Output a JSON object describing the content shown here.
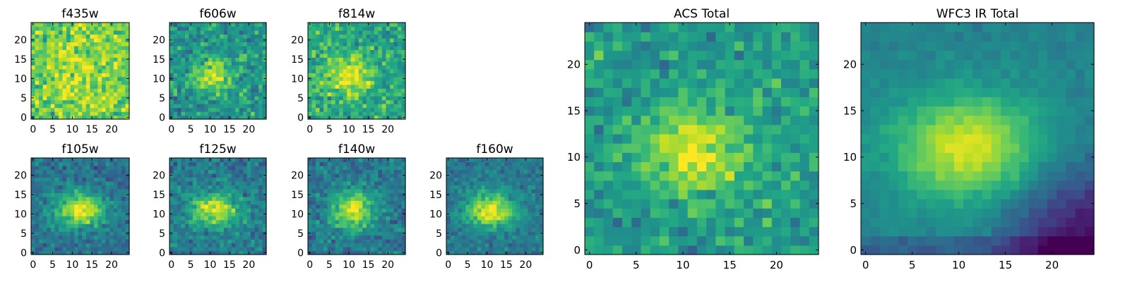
{
  "chart_data": [
    {
      "type": "heatmap",
      "title": "f435w",
      "xticks": [
        "0",
        "5",
        "10",
        "15",
        "20"
      ],
      "yticks": [
        "0",
        "5",
        "10",
        "15",
        "20"
      ],
      "xlim": [
        -0.5,
        24.5
      ],
      "ylim": [
        -0.5,
        24.5
      ],
      "grid_size": 25,
      "colormap": "viridis",
      "center": [
        12,
        12
      ],
      "sigma": [
        9,
        9
      ],
      "peak": 0.15,
      "background": 0.72,
      "noise": 0.22,
      "seed": 11
    },
    {
      "type": "heatmap",
      "title": "f606w",
      "xticks": [
        "0",
        "5",
        "10",
        "15",
        "20"
      ],
      "yticks": [
        "0",
        "5",
        "10",
        "15",
        "20"
      ],
      "xlim": [
        -0.5,
        24.5
      ],
      "ylim": [
        -0.5,
        24.5
      ],
      "grid_size": 25,
      "colormap": "viridis",
      "center": [
        11,
        11
      ],
      "sigma": [
        3.5,
        3
      ],
      "peak": 0.42,
      "background": 0.52,
      "noise": 0.2,
      "seed": 23
    },
    {
      "type": "heatmap",
      "title": "f814w",
      "xticks": [
        "0",
        "5",
        "10",
        "15",
        "20"
      ],
      "yticks": [
        "0",
        "5",
        "10",
        "15",
        "20"
      ],
      "xlim": [
        -0.5,
        24.5
      ],
      "ylim": [
        -0.5,
        24.5
      ],
      "grid_size": 25,
      "colormap": "viridis",
      "center": [
        10,
        11
      ],
      "sigma": [
        4.5,
        3.5
      ],
      "peak": 0.35,
      "background": 0.6,
      "noise": 0.2,
      "seed": 37
    },
    {
      "type": "heatmap",
      "title": "f105w",
      "xticks": [
        "0",
        "5",
        "10",
        "15",
        "20"
      ],
      "yticks": [
        "0",
        "5",
        "10",
        "15",
        "20"
      ],
      "xlim": [
        -0.5,
        24.5
      ],
      "ylim": [
        -0.5,
        24.5
      ],
      "grid_size": 25,
      "colormap": "viridis",
      "center": [
        12,
        11
      ],
      "sigma": [
        4.5,
        3
      ],
      "peak": 0.6,
      "background": 0.38,
      "noise": 0.14,
      "seed": 41
    },
    {
      "type": "heatmap",
      "title": "f125w",
      "xticks": [
        "0",
        "5",
        "10",
        "15",
        "20"
      ],
      "yticks": [
        "0",
        "5",
        "10",
        "15",
        "20"
      ],
      "xlim": [
        -0.5,
        24.5
      ],
      "ylim": [
        -0.5,
        24.5
      ],
      "grid_size": 25,
      "colormap": "viridis",
      "center": [
        11,
        11
      ],
      "sigma": [
        4.5,
        3
      ],
      "peak": 0.5,
      "background": 0.42,
      "noise": 0.16,
      "seed": 53
    },
    {
      "type": "heatmap",
      "title": "f140w",
      "xticks": [
        "0",
        "5",
        "10",
        "15",
        "20"
      ],
      "yticks": [
        "0",
        "5",
        "10",
        "15",
        "20"
      ],
      "xlim": [
        -0.5,
        24.5
      ],
      "ylim": [
        -0.5,
        24.5
      ],
      "grid_size": 25,
      "colormap": "viridis",
      "center": [
        11,
        11
      ],
      "sigma": [
        4,
        3.5
      ],
      "peak": 0.55,
      "background": 0.4,
      "noise": 0.16,
      "seed": 67
    },
    {
      "type": "heatmap",
      "title": "f160w",
      "xticks": [
        "0",
        "5",
        "10",
        "15",
        "20"
      ],
      "yticks": [
        "0",
        "5",
        "10",
        "15",
        "20"
      ],
      "xlim": [
        -0.5,
        24.5
      ],
      "ylim": [
        -0.5,
        24.5
      ],
      "grid_size": 25,
      "colormap": "viridis",
      "center": [
        11,
        11
      ],
      "sigma": [
        4.5,
        3
      ],
      "peak": 0.6,
      "background": 0.4,
      "noise": 0.12,
      "seed": 71
    },
    {
      "type": "heatmap",
      "title": "ACS Total",
      "xticks": [
        "0",
        "5",
        "10",
        "15",
        "20"
      ],
      "yticks": [
        "0",
        "5",
        "10",
        "15",
        "20"
      ],
      "xlim": [
        -0.5,
        24.5
      ],
      "ylim": [
        -0.5,
        24.5
      ],
      "grid_size": 25,
      "colormap": "viridis",
      "center": [
        11.5,
        11
      ],
      "sigma": [
        4,
        3.2
      ],
      "peak": 0.42,
      "background": 0.55,
      "noise": 0.17,
      "seed": 83
    },
    {
      "type": "heatmap",
      "title": "WFC3 IR Total",
      "xticks": [
        "0",
        "5",
        "10",
        "15",
        "20"
      ],
      "yticks": [
        "0",
        "5",
        "10",
        "15",
        "20"
      ],
      "xlim": [
        -0.5,
        24.5
      ],
      "ylim": [
        -0.5,
        24.5
      ],
      "grid_size": 25,
      "colormap": "viridis",
      "center": [
        11,
        11
      ],
      "sigma": [
        5.5,
        4
      ],
      "peak": 0.5,
      "background": 0.45,
      "noise": 0.05,
      "seed": 97,
      "corner_dark": true
    }
  ]
}
